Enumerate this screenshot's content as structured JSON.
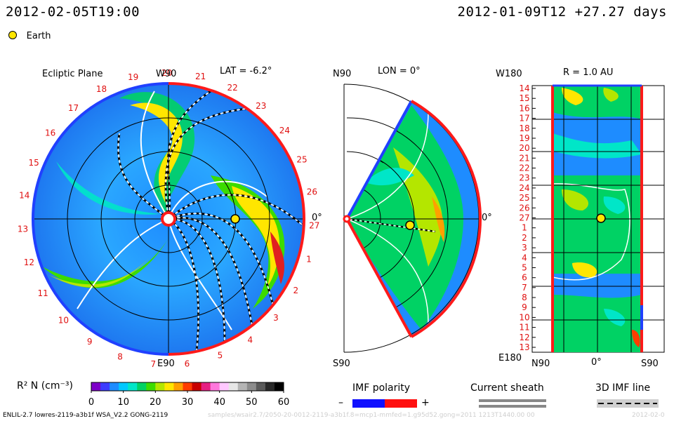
{
  "header": {
    "model_time": "2012-02-05T19:00",
    "reference": "2012-01-09T12 +27.27 days",
    "earth_legend": "Earth"
  },
  "panels": {
    "ecliptic": {
      "title": "Ecliptic Plane",
      "top_label": "W90",
      "lat_label": "LAT = -6.2°",
      "bottom_label": "E90",
      "right_label": "0°"
    },
    "meridional": {
      "top_label": "N90",
      "lon_label": "LON = 0°",
      "bottom_label": "S90",
      "right_label": "0°"
    },
    "radial": {
      "top_label": "W180",
      "r_label": "R = 1.0 AU",
      "bottom_left": "E180",
      "bottom_n": "N90",
      "bottom_mid": "0°",
      "bottom_s": "S90"
    }
  },
  "ecliptic_ticks": [
    "19",
    "20",
    "21",
    "22",
    "23",
    "24",
    "25",
    "26",
    "27",
    "1",
    "2",
    "3",
    "4",
    "5",
    "6",
    "7",
    "8",
    "9",
    "10",
    "11",
    "12",
    "13",
    "14",
    "15",
    "16",
    "17",
    "18"
  ],
  "radial_ticks": [
    "14",
    "15",
    "16",
    "17",
    "18",
    "19",
    "20",
    "21",
    "22",
    "23",
    "24",
    "25",
    "26",
    "27",
    "1",
    "2",
    "3",
    "4",
    "5",
    "6",
    "7",
    "8",
    "9",
    "10",
    "11",
    "12",
    "13"
  ],
  "colorbar": {
    "label": "R² N (cm⁻³)",
    "ticks": [
      "0",
      "10",
      "20",
      "30",
      "40",
      "50",
      "60"
    ],
    "colors": [
      "#7d00c8",
      "#3c3cff",
      "#1e8cff",
      "#00c8ff",
      "#00e6c8",
      "#00d264",
      "#3cdc00",
      "#b4e600",
      "#ffe600",
      "#ffa000",
      "#ff3c00",
      "#c80000",
      "#e61e82",
      "#ff78dc",
      "#ffc8ff",
      "#e6e6e6",
      "#b4b4b4",
      "#8c8c8c",
      "#5a5a5a",
      "#282828",
      "#000000"
    ]
  },
  "legend": {
    "imf_polarity": "IMF polarity",
    "minus": "–",
    "plus": "+",
    "current_sheath": "Current sheath",
    "imf_line": "3D IMF line"
  },
  "footer": {
    "left": "ENLIL-2.7 lowres-2119-a3b1f WSA_V2.2 GONG-2119",
    "faint": "samples/wsair2.7/2050-20-0012-2119-a3b1f.8=mcp1-mmfed=1.g95d52.gong=2011 1213T1440.00 00",
    "faint_right": "2012-02-0"
  }
}
